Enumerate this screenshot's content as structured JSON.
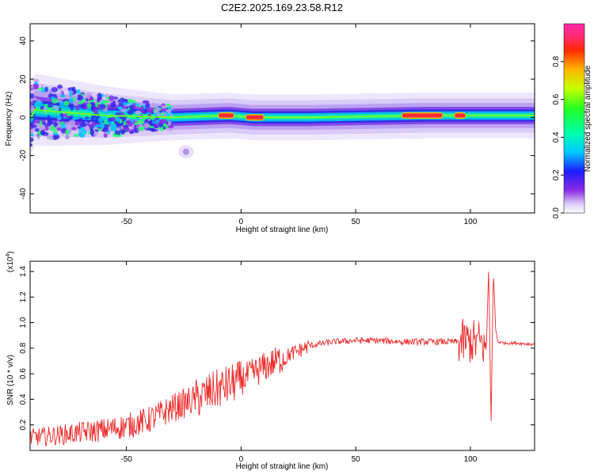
{
  "title": "C2E2.2025.169.23.58.R12",
  "chart_data": [
    {
      "type": "heatmap",
      "xlabel": "Height of straight line (km)",
      "ylabel": "Frequency (Hz)",
      "xlim": [
        -92,
        128
      ],
      "ylim": [
        -50,
        49
      ],
      "xticks": [
        -50,
        0,
        50,
        100
      ],
      "yticks": [
        -40,
        -20,
        0,
        20,
        40
      ],
      "colorbar": {
        "label": "Normalized spectral amplitude",
        "range": [
          0.0,
          1.0
        ],
        "ticks": [
          0.0,
          0.2,
          0.4,
          0.6,
          0.8
        ],
        "tick_labels": [
          "0.0",
          "0.2",
          "0.4",
          "0.6",
          "0.8"
        ]
      },
      "ridge": {
        "description_points": [
          {
            "x": -90,
            "f": 4
          },
          {
            "x": -60,
            "f": 1
          },
          {
            "x": -30,
            "f": 0
          },
          {
            "x": -5,
            "f": 1
          },
          {
            "x": 5,
            "f": 0
          },
          {
            "x": 30,
            "f": 0
          },
          {
            "x": 80,
            "f": 1
          },
          {
            "x": 128,
            "f": 1
          }
        ],
        "peak_segments": [
          {
            "x_start": -10,
            "x_end": -3,
            "f": 1,
            "amplitude": 0.95
          },
          {
            "x_start": 2,
            "x_end": 10,
            "f": 0,
            "amplitude": 0.95
          },
          {
            "x_start": 70,
            "x_end": 88,
            "f": 1,
            "amplitude": 0.9
          },
          {
            "x_start": 93,
            "x_end": 98,
            "f": 1,
            "amplitude": 0.85
          }
        ]
      }
    },
    {
      "type": "line",
      "xlabel": "Height of straight line (km)",
      "ylabel": "SNR (10 * v/v)",
      "y_multiplier": "(x10",
      "y_multiplier_exp": "4",
      "y_multiplier_close": ")",
      "xlim": [
        -92,
        128
      ],
      "ylim": [
        0.0,
        1.48
      ],
      "xticks": [
        -50,
        0,
        50,
        100
      ],
      "yticks": [
        0.2,
        0.4,
        0.6,
        0.8,
        1.0,
        1.2,
        1.4
      ],
      "ytick_labels": [
        "0.2",
        "0.4",
        "0.6",
        "0.8",
        "1.0",
        "1.2",
        "1.4"
      ],
      "series": [
        {
          "color": "#ee2a2a",
          "x": [
            -92,
            -80,
            -70,
            -60,
            -50,
            -40,
            -30,
            -20,
            -10,
            0,
            10,
            20,
            30,
            40,
            50,
            60,
            70,
            80,
            90,
            95,
            100,
            104,
            107,
            108,
            109,
            110,
            111,
            112,
            115,
            120,
            128
          ],
          "y": [
            0.1,
            0.12,
            0.14,
            0.16,
            0.19,
            0.24,
            0.33,
            0.4,
            0.48,
            0.55,
            0.65,
            0.74,
            0.82,
            0.85,
            0.86,
            0.86,
            0.85,
            0.85,
            0.85,
            0.85,
            0.85,
            0.85,
            0.8,
            1.45,
            0.18,
            1.42,
            0.95,
            0.85,
            0.84,
            0.84,
            0.83
          ]
        }
      ]
    }
  ]
}
